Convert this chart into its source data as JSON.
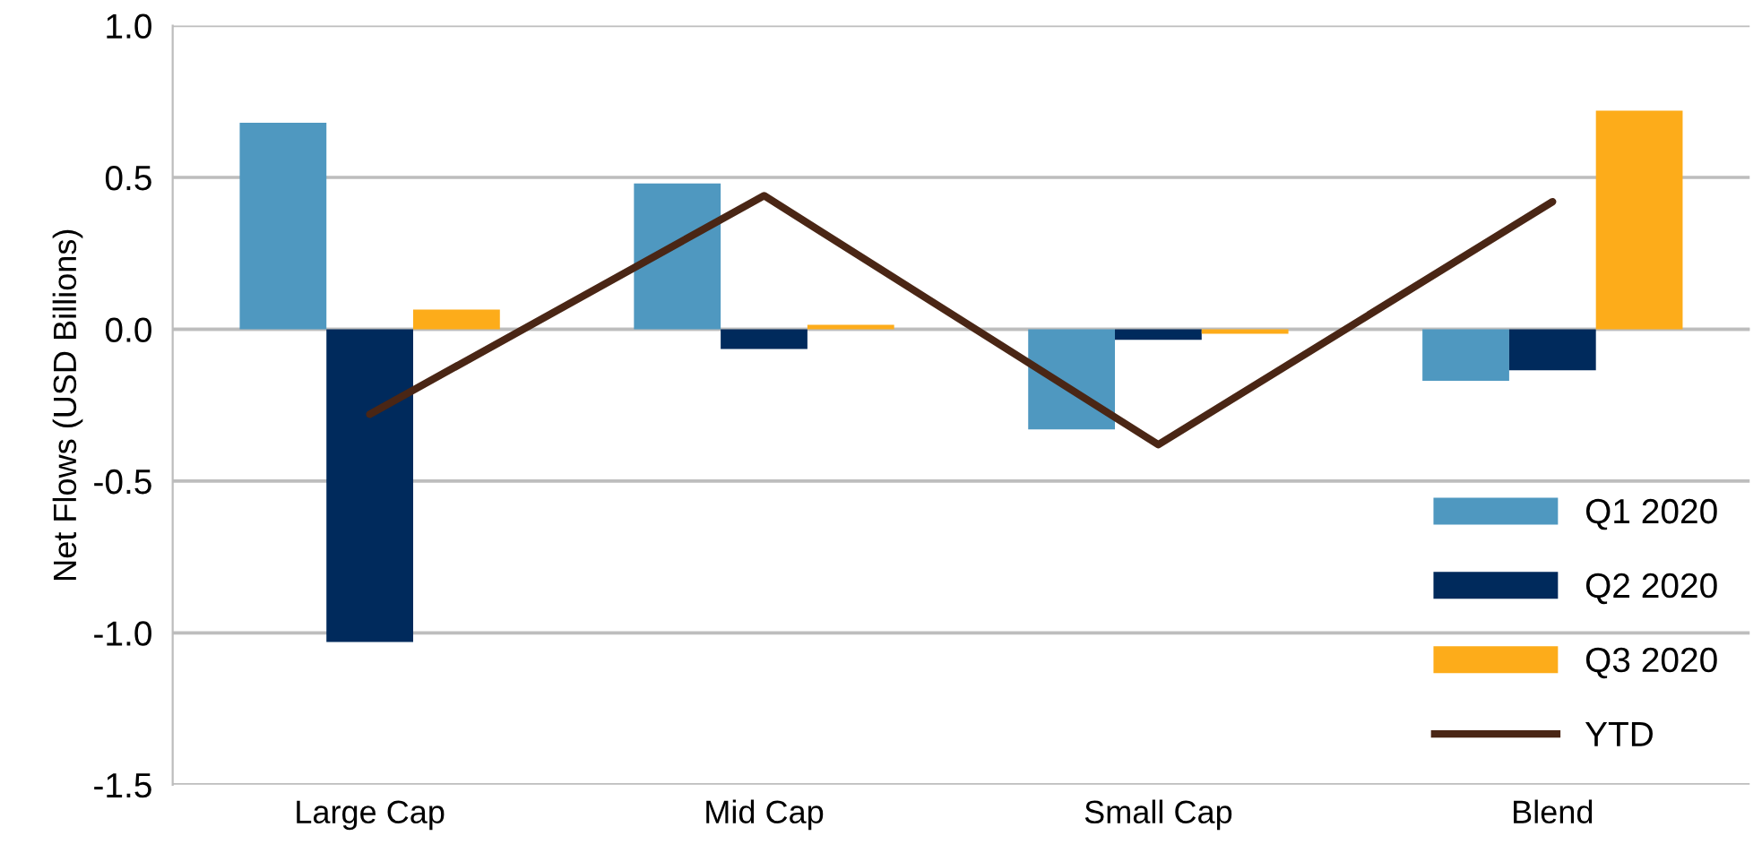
{
  "chart_data": {
    "type": "bar",
    "ylabel": "Net Flows (USD Billions)",
    "categories": [
      "Large Cap",
      "Mid Cap",
      "Small Cap",
      "Blend"
    ],
    "series": [
      {
        "name": "Q1 2020",
        "color": "#4f98c0",
        "values": [
          0.68,
          0.48,
          -0.33,
          -0.17
        ]
      },
      {
        "name": "Q2 2020",
        "color": "#002a5c",
        "values": [
          -1.03,
          -0.065,
          -0.035,
          -0.135
        ]
      },
      {
        "name": "Q3 2020",
        "color": "#fdac1a",
        "values": [
          0.065,
          0.015,
          -0.015,
          0.72
        ]
      },
      {
        "name": "YTD",
        "type": "line",
        "color": "#4a2615",
        "values": [
          -0.28,
          0.44,
          -0.38,
          0.42
        ]
      }
    ],
    "ylim": [
      -1.5,
      1.0
    ],
    "yticks": [
      {
        "value": -1.5,
        "label": "-1.5"
      },
      {
        "value": -1.0,
        "label": "-1.0"
      },
      {
        "value": -0.5,
        "label": "-0.5"
      },
      {
        "value": 0,
        "label": "0.0"
      },
      {
        "value": 0.5,
        "label": "0.5"
      },
      {
        "value": 1.0,
        "label": "1.0"
      }
    ],
    "grid": "y",
    "legend": "bottom right"
  }
}
